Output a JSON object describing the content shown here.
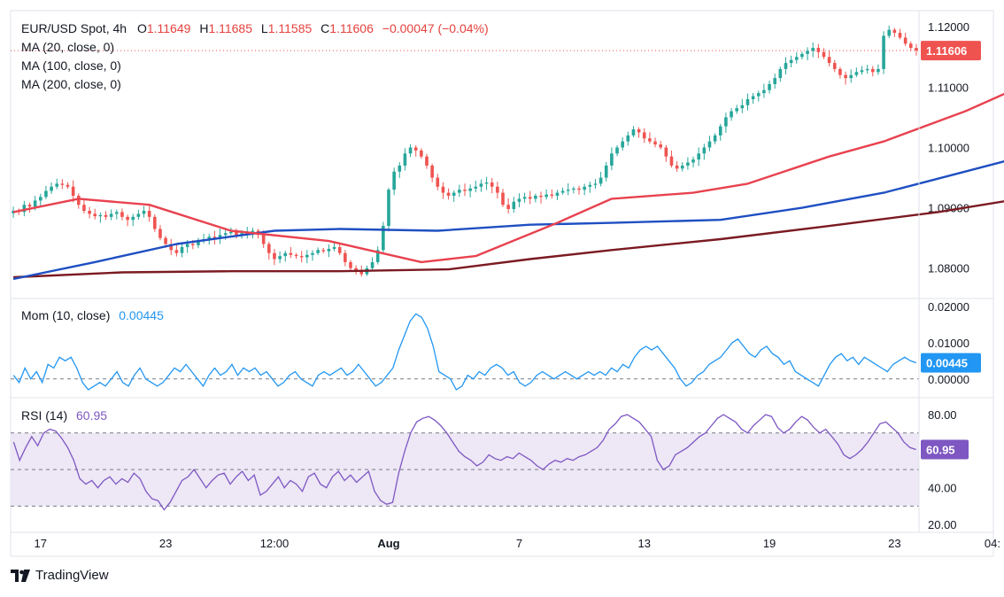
{
  "header": {
    "symbol": "EUR/USD Spot, 4h",
    "o_label": "O",
    "o": "1.11649",
    "h_label": "H",
    "h": "1.11685",
    "l_label": "L",
    "l": "1.11585",
    "c_label": "C",
    "c": "1.11606",
    "change": "−0.00047 (−0.04%)"
  },
  "indicators": {
    "ma20": "MA (20, close, 0)",
    "ma100": "MA (100, close, 0)",
    "ma200": "MA (200, close, 0)",
    "mom_label": "Mom (10, close)",
    "mom_value": "0.00445",
    "rsi_label": "RSI (14)",
    "rsi_value": "60.95"
  },
  "colors": {
    "up": "#26a69a",
    "down": "#ef5350",
    "ma20": "#e8424f",
    "ma100": "#1e4fc2",
    "ma200": "#7b1a22",
    "momentum": "#2196f3",
    "rsi": "#7e57c2",
    "rsi_band": "#ede7f6"
  },
  "brand": "TradingView",
  "chart_data": [
    {
      "type": "candlestick",
      "title": "EUR/USD Spot, 4h",
      "ylim": [
        1.076,
        1.1215
      ],
      "yticks": [
        "1.12000",
        "1.11000",
        "1.10000",
        "1.09000",
        "1.08000"
      ],
      "ytick_values": [
        1.12,
        1.11,
        1.1,
        1.09,
        1.08
      ],
      "xticks": [
        "17",
        "23",
        "12:00",
        "Aug",
        "7",
        "13",
        "19",
        "23",
        "04:"
      ],
      "xtick_index": [
        5,
        28,
        48,
        69,
        93,
        116,
        139,
        162,
        180
      ],
      "last_price": "1.11606",
      "last_value": 1.11606,
      "price_path": [
        1.0895,
        1.0893,
        1.0905,
        1.0902,
        1.0912,
        1.0918,
        1.0928,
        1.0935,
        1.094,
        1.0938,
        1.0935,
        1.092,
        1.0905,
        1.0895,
        1.089,
        1.0886,
        1.0888,
        1.0885,
        1.089,
        1.0893,
        1.0885,
        1.088,
        1.0885,
        1.089,
        1.0895,
        1.0885,
        1.0865,
        1.085,
        1.084,
        1.083,
        1.0825,
        1.0835,
        1.084,
        1.0838,
        1.0845,
        1.0848,
        1.0852,
        1.085,
        1.0855,
        1.0858,
        1.086,
        1.0855,
        1.0858,
        1.086,
        1.0862,
        1.0855,
        1.084,
        1.0825,
        1.0815,
        1.082,
        1.0825,
        1.0822,
        1.082,
        1.0818,
        1.0822,
        1.0825,
        1.083,
        1.0828,
        1.0832,
        1.0835,
        1.0825,
        1.081,
        1.08,
        1.0795,
        1.079,
        1.08,
        1.081,
        1.083,
        1.087,
        1.093,
        1.096,
        1.097,
        1.099,
        1.1,
        1.0995,
        1.0985,
        1.097,
        1.095,
        1.0935,
        1.0925,
        1.092,
        1.0925,
        1.093,
        1.0928,
        1.0932,
        1.0935,
        1.094,
        1.0942,
        1.0935,
        1.0925,
        1.0905,
        1.0898,
        1.091,
        1.0915,
        1.0918,
        1.0915,
        1.092,
        1.0918,
        1.0922,
        1.092,
        1.0925,
        1.0928,
        1.093,
        1.0932,
        1.093,
        1.0935,
        1.0938,
        1.094,
        1.095,
        1.097,
        1.099,
        1.1,
        1.101,
        1.102,
        1.103,
        1.1025,
        1.1015,
        1.101,
        1.1005,
        1.1,
        1.0985,
        1.097,
        1.0965,
        1.097,
        1.0975,
        1.098,
        1.099,
        1.1,
        1.101,
        1.102,
        1.1035,
        1.105,
        1.106,
        1.1065,
        1.107,
        1.108,
        1.1085,
        1.109,
        1.1095,
        1.1105,
        1.1115,
        1.113,
        1.114,
        1.1145,
        1.115,
        1.1155,
        1.116,
        1.1165,
        1.1158,
        1.115,
        1.114,
        1.113,
        1.112,
        1.1115,
        1.112,
        1.1125,
        1.1128,
        1.113,
        1.1125,
        1.113,
        1.1185,
        1.1195,
        1.119,
        1.1182,
        1.1172,
        1.1165,
        1.11606
      ],
      "ma20": [
        [
          0,
          1.0893
        ],
        [
          12,
          1.0915
        ],
        [
          25,
          1.0905
        ],
        [
          40,
          1.0862
        ],
        [
          58,
          1.0845
        ],
        [
          75,
          1.081
        ],
        [
          85,
          1.082
        ],
        [
          100,
          1.0875
        ],
        [
          110,
          1.0915
        ],
        [
          125,
          1.0925
        ],
        [
          135,
          1.094
        ],
        [
          150,
          1.0985
        ],
        [
          160,
          1.101
        ],
        [
          175,
          1.106
        ],
        [
          185,
          1.11
        ],
        [
          194,
          1.1145
        ]
      ],
      "ma100": [
        [
          0,
          1.0782
        ],
        [
          15,
          1.081
        ],
        [
          30,
          1.084
        ],
        [
          48,
          1.0862
        ],
        [
          60,
          1.0865
        ],
        [
          78,
          1.0862
        ],
        [
          95,
          1.0872
        ],
        [
          110,
          1.0875
        ],
        [
          130,
          1.088
        ],
        [
          145,
          1.09
        ],
        [
          160,
          1.0925
        ],
        [
          175,
          1.096
        ],
        [
          194,
          1.1005
        ]
      ],
      "ma200": [
        [
          0,
          1.0785
        ],
        [
          20,
          1.0793
        ],
        [
          40,
          1.0795
        ],
        [
          60,
          1.0795
        ],
        [
          80,
          1.0798
        ],
        [
          95,
          1.0815
        ],
        [
          110,
          1.083
        ],
        [
          130,
          1.0848
        ],
        [
          150,
          1.087
        ],
        [
          170,
          1.0893
        ],
        [
          185,
          1.0915
        ],
        [
          194,
          1.0935
        ]
      ]
    },
    {
      "type": "line",
      "title": "Mom (10, close)",
      "ylim": [
        -0.003,
        0.021
      ],
      "yticks": [
        "0.02000",
        "0.01000",
        "0.00000"
      ],
      "ytick_values": [
        0.02,
        0.01,
        0.0
      ],
      "last_value": 0.00445,
      "values": [
        0.001,
        -0.001,
        0.003,
        0.0,
        0.002,
        -0.001,
        0.004,
        0.003,
        0.006,
        0.005,
        0.006,
        0.003,
        -0.001,
        -0.003,
        -0.002,
        -0.001,
        -0.002,
        0.0,
        0.002,
        -0.001,
        -0.002,
        0.001,
        0.003,
        0.0,
        -0.001,
        -0.002,
        -0.001,
        0.001,
        0.003,
        0.002,
        0.004,
        0.002,
        0.0,
        -0.002,
        0.001,
        0.003,
        0.001,
        0.002,
        0.004,
        0.001,
        0.003,
        0.002,
        0.003,
        0.001,
        0.002,
        0.0,
        -0.002,
        -0.001,
        0.001,
        0.002,
        0.0,
        -0.001,
        -0.002,
        0.001,
        0.002,
        0.001,
        0.002,
        0.003,
        0.001,
        0.002,
        0.004,
        0.002,
        0.0,
        -0.002,
        -0.001,
        0.001,
        0.003,
        0.008,
        0.012,
        0.016,
        0.018,
        0.017,
        0.014,
        0.009,
        0.002,
        0.001,
        0.0,
        -0.003,
        -0.002,
        0.001,
        0.0,
        0.002,
        0.001,
        0.003,
        0.004,
        0.003,
        0.001,
        0.002,
        -0.001,
        -0.002,
        -0.001,
        0.001,
        0.002,
        0.001,
        0.0,
        0.001,
        0.002,
        0.001,
        0.0,
        0.001,
        0.002,
        0.001,
        0.002,
        0.001,
        0.003,
        0.002,
        0.004,
        0.003,
        0.006,
        0.008,
        0.009,
        0.008,
        0.009,
        0.007,
        0.005,
        0.003,
        0.0,
        -0.002,
        -0.001,
        0.001,
        0.002,
        0.004,
        0.005,
        0.006,
        0.008,
        0.01,
        0.011,
        0.009,
        0.007,
        0.006,
        0.008,
        0.009,
        0.007,
        0.006,
        0.004,
        0.005,
        0.002,
        0.001,
        0.0,
        -0.001,
        -0.002,
        0.001,
        0.004,
        0.006,
        0.007,
        0.005,
        0.006,
        0.004,
        0.006,
        0.005,
        0.004,
        0.003,
        0.002,
        0.004,
        0.005,
        0.006,
        0.005,
        0.00445
      ],
      "xticks_same_as_price": true
    },
    {
      "type": "line",
      "title": "RSI (14)",
      "ylim": [
        20,
        82
      ],
      "yticks": [
        "80.00",
        "40.00",
        "20.00"
      ],
      "ytick_values": [
        80,
        40,
        20
      ],
      "band": [
        30,
        70
      ],
      "midline": 50,
      "last_value": 60.95,
      "values": [
        65,
        55,
        62,
        68,
        63,
        70,
        72,
        71,
        67,
        62,
        55,
        45,
        42,
        44,
        40,
        44,
        46,
        42,
        45,
        43,
        48,
        45,
        38,
        34,
        33,
        28,
        32,
        38,
        44,
        46,
        50,
        45,
        40,
        44,
        47,
        48,
        42,
        46,
        49,
        44,
        47,
        36,
        38,
        42,
        46,
        40,
        44,
        42,
        38,
        46,
        48,
        42,
        40,
        46,
        49,
        44,
        47,
        43,
        46,
        49,
        38,
        33,
        31,
        32,
        48,
        60,
        70,
        76,
        78,
        79,
        77,
        74,
        70,
        65,
        60,
        57,
        55,
        52,
        54,
        58,
        56,
        55,
        57,
        56,
        59,
        57,
        55,
        52,
        50,
        53,
        55,
        54,
        56,
        55,
        57,
        58,
        60,
        62,
        66,
        72,
        75,
        79,
        80,
        78,
        76,
        72,
        68,
        55,
        50,
        52,
        58,
        60,
        62,
        65,
        68,
        70,
        74,
        78,
        80,
        78,
        76,
        72,
        70,
        74,
        77,
        80,
        79,
        73,
        70,
        72,
        76,
        79,
        77,
        73,
        70,
        72,
        68,
        64,
        58,
        56,
        58,
        61,
        65,
        70,
        75,
        76,
        73,
        70,
        65,
        62,
        60.95
      ]
    }
  ]
}
